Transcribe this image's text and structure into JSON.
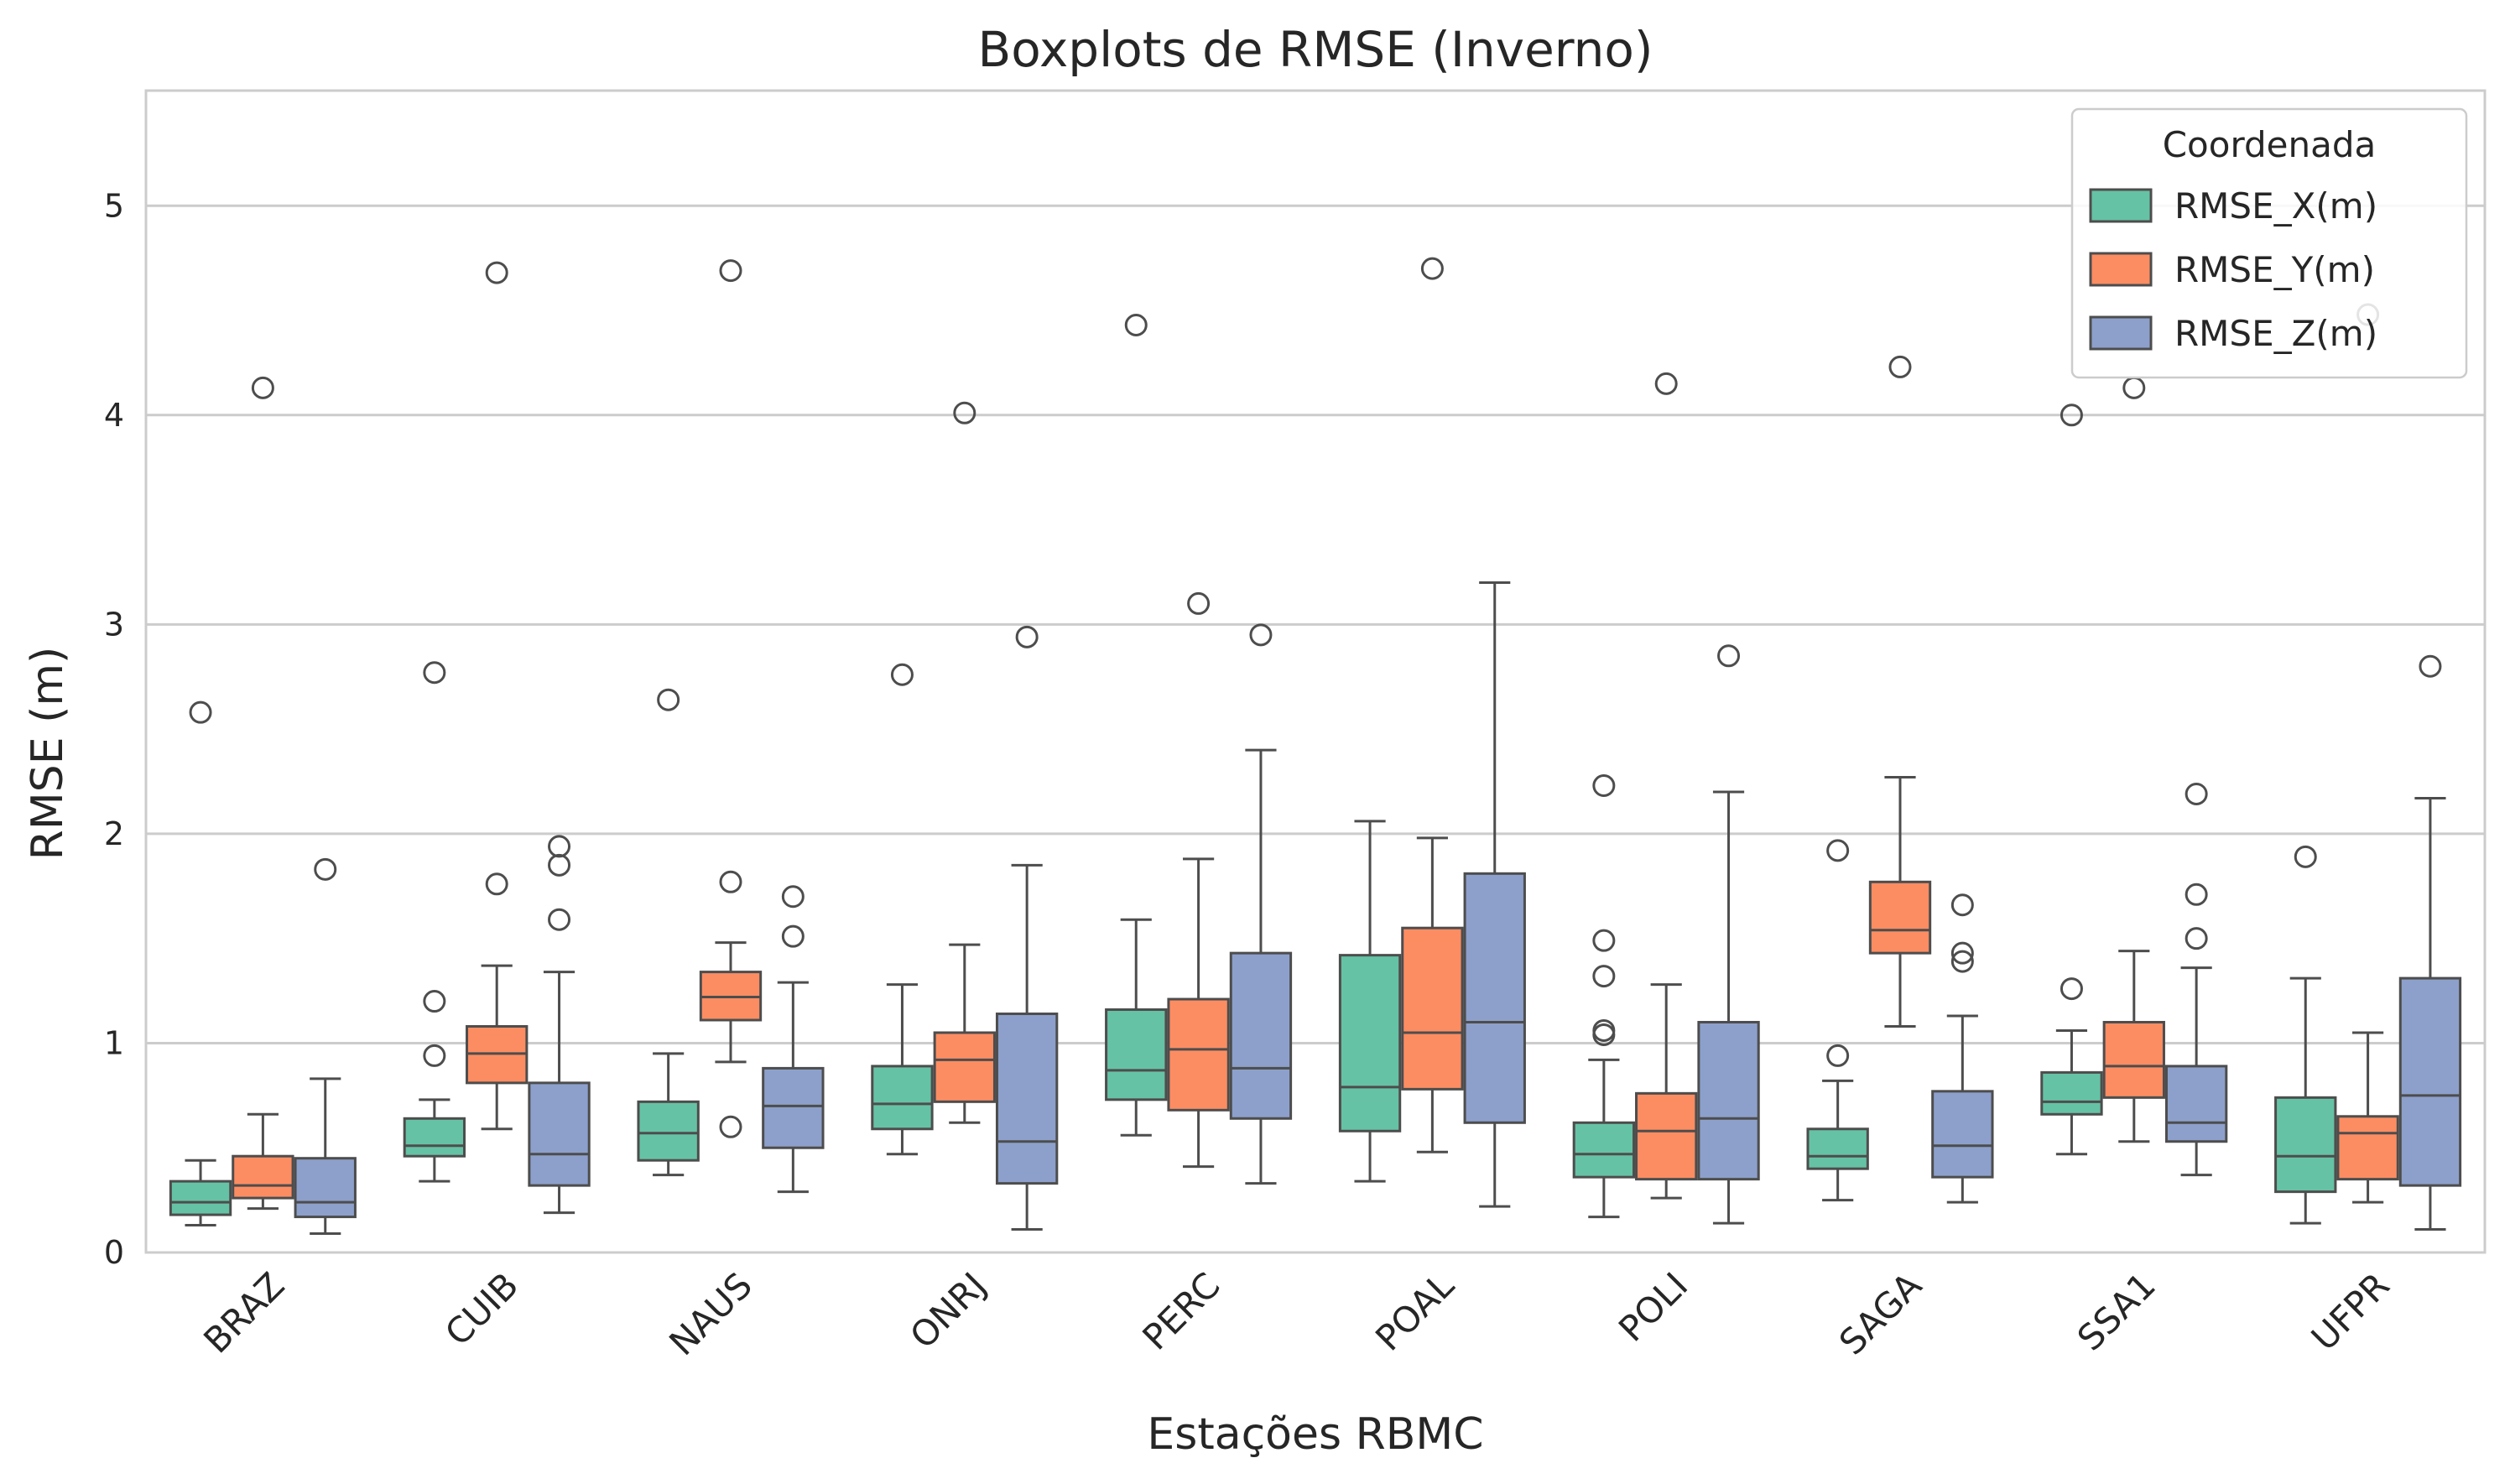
{
  "chart_data": {
    "type": "boxplot",
    "title": "Boxplots de RMSE (Inverno)",
    "xlabel": "Estações RBMC",
    "ylabel": "RMSE (m)",
    "ylim": [
      0,
      5.55
    ],
    "yticks": [
      "0",
      "1",
      "2",
      "3",
      "4",
      "5"
    ],
    "grid": "horizontal",
    "legend": {
      "title": "Coordenada",
      "placement": "top-right"
    },
    "categories": [
      "BRAZ",
      "CUIB",
      "NAUS",
      "ONRJ",
      "PERC",
      "POAL",
      "POLI",
      "SAGA",
      "SSA1",
      "UFPR"
    ],
    "series": [
      {
        "name": "RMSE_X(m)",
        "color": "#66c2a5",
        "boxes": [
          {
            "whislo": 0.13,
            "q1": 0.18,
            "med": 0.24,
            "q3": 0.34,
            "whishi": 0.44,
            "fliers": [
              2.58
            ]
          },
          {
            "whislo": 0.34,
            "q1": 0.46,
            "med": 0.51,
            "q3": 0.64,
            "whishi": 0.73,
            "fliers": [
              0.94,
              1.2,
              2.77
            ]
          },
          {
            "whislo": 0.37,
            "q1": 0.44,
            "med": 0.57,
            "q3": 0.72,
            "whishi": 0.95,
            "fliers": [
              2.64
            ]
          },
          {
            "whislo": 0.47,
            "q1": 0.59,
            "med": 0.71,
            "q3": 0.89,
            "whishi": 1.28,
            "fliers": [
              2.76
            ]
          },
          {
            "whislo": 0.56,
            "q1": 0.73,
            "med": 0.87,
            "q3": 1.16,
            "whishi": 1.59,
            "fliers": [
              4.43
            ]
          },
          {
            "whislo": 0.34,
            "q1": 0.58,
            "med": 0.79,
            "q3": 1.42,
            "whishi": 2.06,
            "fliers": []
          },
          {
            "whislo": 0.17,
            "q1": 0.36,
            "med": 0.47,
            "q3": 0.62,
            "whishi": 0.92,
            "fliers": [
              1.04,
              1.06,
              1.32,
              1.49,
              2.23
            ]
          },
          {
            "whislo": 0.25,
            "q1": 0.4,
            "med": 0.46,
            "q3": 0.59,
            "whishi": 0.82,
            "fliers": [
              0.94,
              1.92
            ]
          },
          {
            "whislo": 0.47,
            "q1": 0.66,
            "med": 0.72,
            "q3": 0.86,
            "whishi": 1.06,
            "fliers": [
              1.26,
              4.0
            ]
          },
          {
            "whislo": 0.14,
            "q1": 0.29,
            "med": 0.46,
            "q3": 0.74,
            "whishi": 1.31,
            "fliers": [
              1.89
            ]
          }
        ]
      },
      {
        "name": "RMSE_Y(m)",
        "color": "#fc8d62",
        "boxes": [
          {
            "whislo": 0.21,
            "q1": 0.26,
            "med": 0.32,
            "q3": 0.46,
            "whishi": 0.66,
            "fliers": [
              4.13
            ]
          },
          {
            "whislo": 0.59,
            "q1": 0.81,
            "med": 0.95,
            "q3": 1.08,
            "whishi": 1.37,
            "fliers": [
              1.76,
              4.68
            ]
          },
          {
            "whislo": 0.91,
            "q1": 1.11,
            "med": 1.22,
            "q3": 1.34,
            "whishi": 1.48,
            "fliers": [
              0.6,
              1.77,
              4.69
            ]
          },
          {
            "whislo": 0.62,
            "q1": 0.72,
            "med": 0.92,
            "q3": 1.05,
            "whishi": 1.47,
            "fliers": [
              4.01
            ]
          },
          {
            "whislo": 0.41,
            "q1": 0.68,
            "med": 0.97,
            "q3": 1.21,
            "whishi": 1.88,
            "fliers": [
              3.1
            ]
          },
          {
            "whislo": 0.48,
            "q1": 0.78,
            "med": 1.05,
            "q3": 1.55,
            "whishi": 1.98,
            "fliers": [
              4.7
            ]
          },
          {
            "whislo": 0.26,
            "q1": 0.35,
            "med": 0.58,
            "q3": 0.76,
            "whishi": 1.28,
            "fliers": [
              4.15
            ]
          },
          {
            "whislo": 1.08,
            "q1": 1.43,
            "med": 1.54,
            "q3": 1.77,
            "whishi": 2.27,
            "fliers": [
              4.23
            ]
          },
          {
            "whislo": 0.53,
            "q1": 0.74,
            "med": 0.89,
            "q3": 1.1,
            "whishi": 1.44,
            "fliers": [
              4.13
            ]
          },
          {
            "whislo": 0.24,
            "q1": 0.35,
            "med": 0.57,
            "q3": 0.65,
            "whishi": 1.05,
            "fliers": [
              4.48
            ]
          }
        ]
      },
      {
        "name": "RMSE_Z(m)",
        "color": "#8da0cb",
        "boxes": [
          {
            "whislo": 0.09,
            "q1": 0.17,
            "med": 0.24,
            "q3": 0.45,
            "whishi": 0.83,
            "fliers": [
              1.83
            ]
          },
          {
            "whislo": 0.19,
            "q1": 0.32,
            "med": 0.47,
            "q3": 0.81,
            "whishi": 1.34,
            "fliers": [
              1.59,
              1.85,
              1.94
            ]
          },
          {
            "whislo": 0.29,
            "q1": 0.5,
            "med": 0.7,
            "q3": 0.88,
            "whishi": 1.29,
            "fliers": [
              1.51,
              1.7
            ]
          },
          {
            "whislo": 0.11,
            "q1": 0.33,
            "med": 0.53,
            "q3": 1.14,
            "whishi": 1.85,
            "fliers": [
              2.94
            ]
          },
          {
            "whislo": 0.33,
            "q1": 0.64,
            "med": 0.88,
            "q3": 1.43,
            "whishi": 2.4,
            "fliers": [
              2.95
            ]
          },
          {
            "whislo": 0.22,
            "q1": 0.62,
            "med": 1.1,
            "q3": 1.81,
            "whishi": 3.2,
            "fliers": []
          },
          {
            "whislo": 0.14,
            "q1": 0.35,
            "med": 0.64,
            "q3": 1.1,
            "whishi": 2.2,
            "fliers": [
              2.85
            ]
          },
          {
            "whislo": 0.24,
            "q1": 0.36,
            "med": 0.51,
            "q3": 0.77,
            "whishi": 1.13,
            "fliers": [
              1.39,
              1.43,
              1.66
            ]
          },
          {
            "whislo": 0.37,
            "q1": 0.53,
            "med": 0.62,
            "q3": 0.89,
            "whishi": 1.36,
            "fliers": [
              1.5,
              1.71,
              2.19
            ]
          },
          {
            "whislo": 0.11,
            "q1": 0.32,
            "med": 0.75,
            "q3": 1.31,
            "whishi": 2.17,
            "fliers": [
              2.8
            ]
          }
        ]
      }
    ]
  }
}
